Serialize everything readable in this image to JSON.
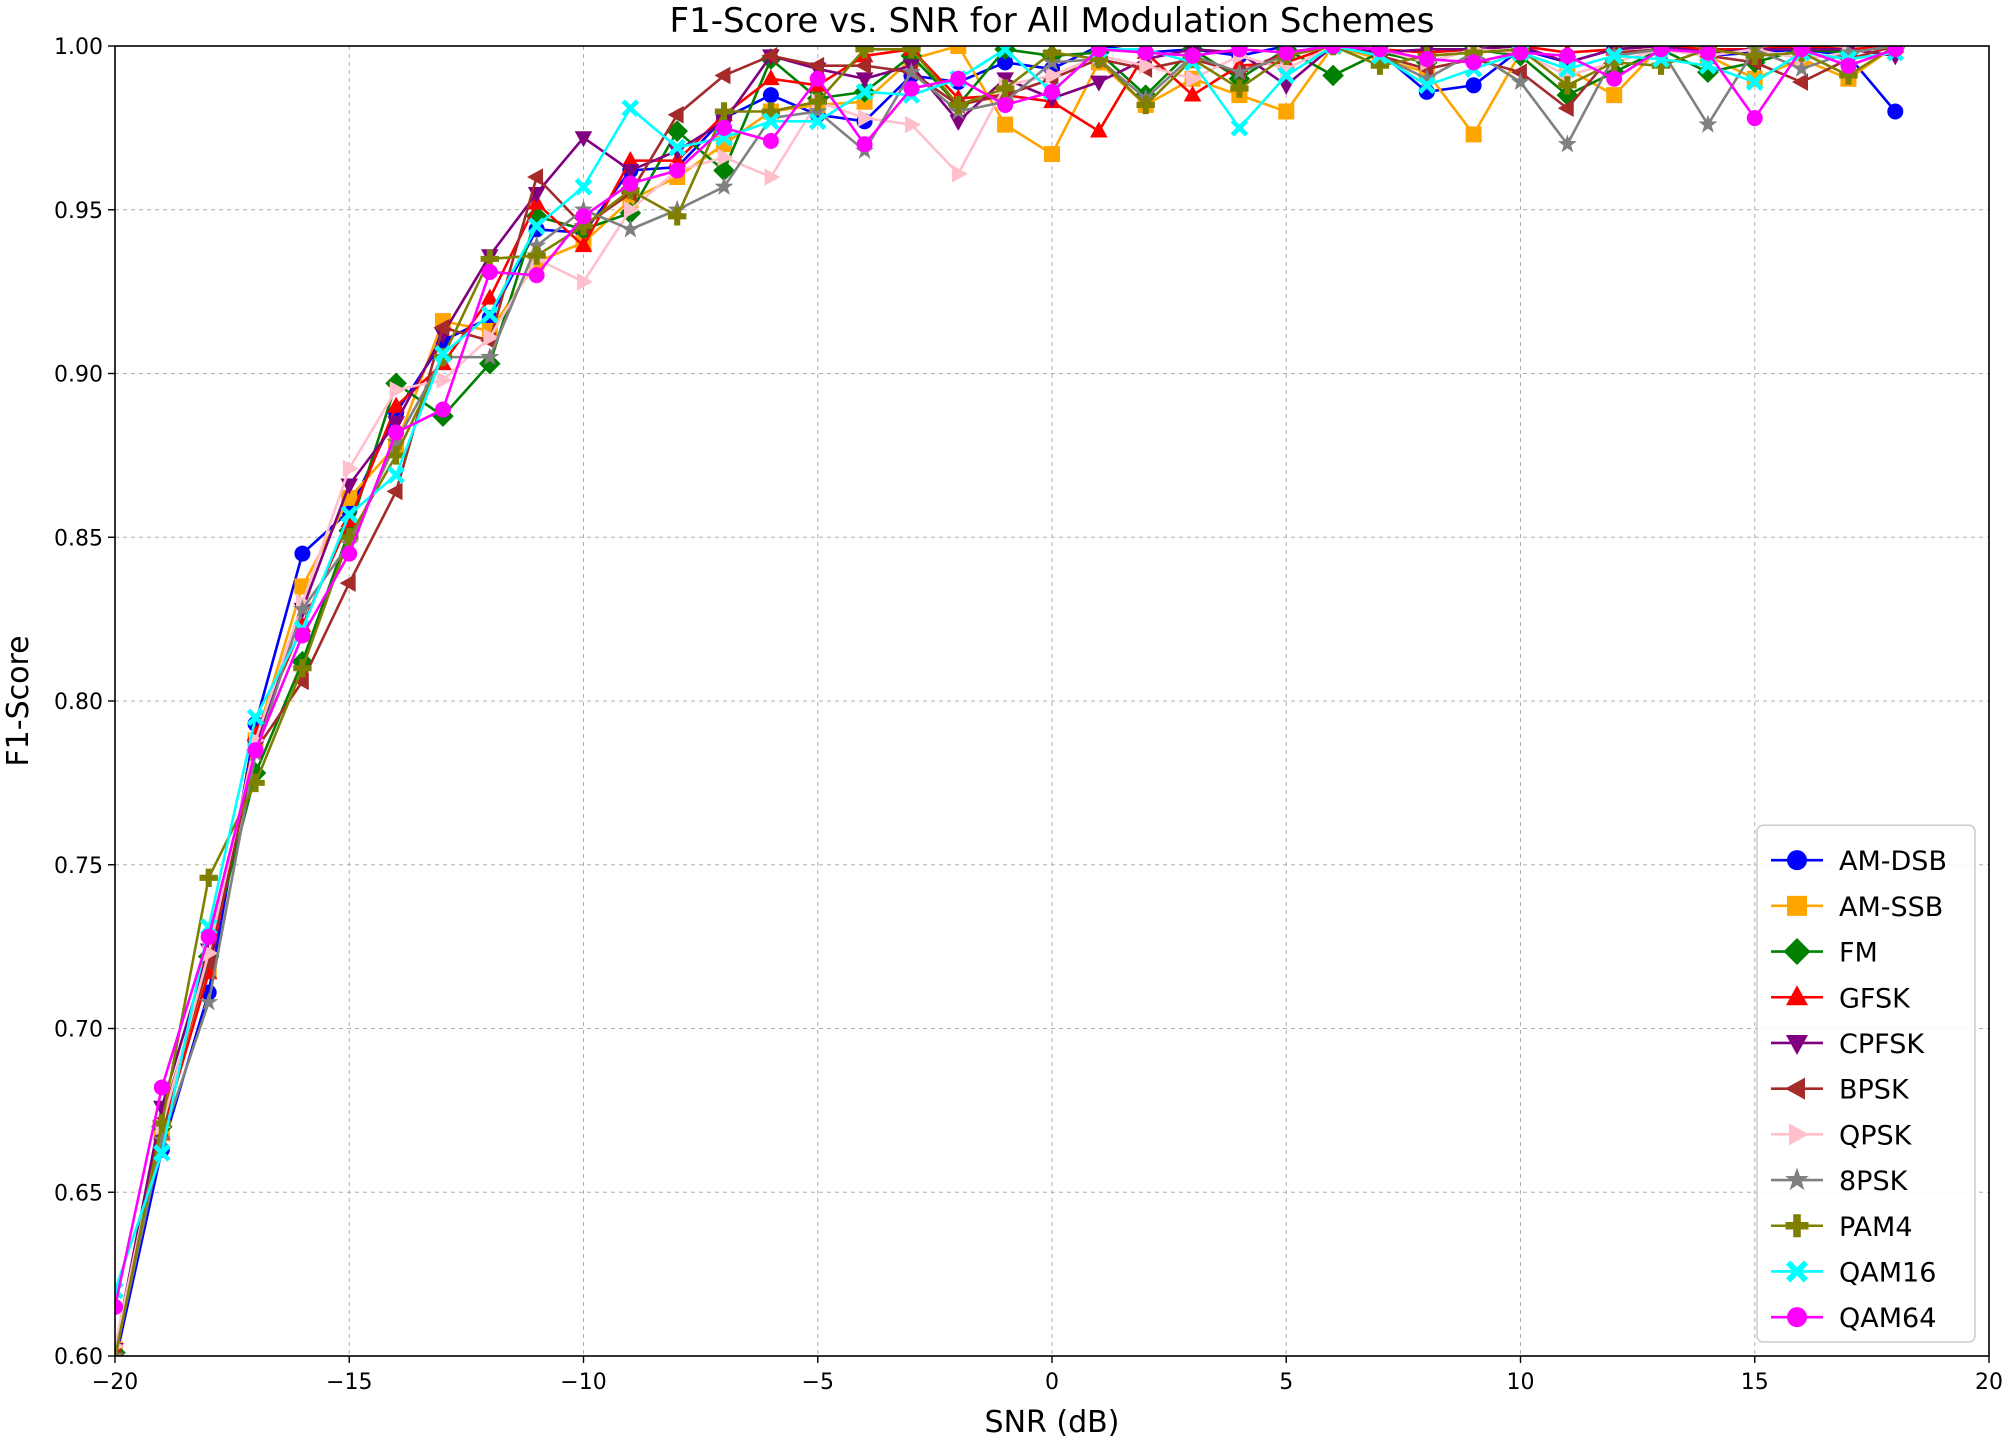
{
  "chart_data": {
    "type": "line",
    "title": "F1-Score vs. SNR for All Modulation Schemes",
    "xlabel": "SNR (dB)",
    "ylabel": "F1-Score",
    "xlim": [
      -20,
      20
    ],
    "ylim": [
      0.6,
      1.0
    ],
    "xticks": [
      -20,
      -15,
      -10,
      -5,
      0,
      5,
      10,
      15,
      20
    ],
    "xtick_labels": [
      "−20",
      "−15",
      "−10",
      "−5",
      "0",
      "5",
      "10",
      "15",
      "20"
    ],
    "yticks": [
      0.6,
      0.65,
      0.7,
      0.75,
      0.8,
      0.85,
      0.9,
      0.95,
      1.0
    ],
    "ytick_labels": [
      "0.60",
      "0.65",
      "0.70",
      "0.75",
      "0.80",
      "0.85",
      "0.90",
      "0.95",
      "1.00"
    ],
    "grid": true,
    "legend_position": "lower-right",
    "x": [
      -20,
      -19,
      -18,
      -17,
      -16,
      -15,
      -14,
      -13,
      -12,
      -11,
      -10,
      -9,
      -8,
      -7,
      -6,
      -5,
      -4,
      -3,
      -2,
      -1,
      0,
      1,
      2,
      3,
      4,
      5,
      6,
      7,
      8,
      9,
      10,
      11,
      12,
      13,
      14,
      15,
      16,
      17,
      18
    ],
    "series": [
      {
        "name": "AM-DSB",
        "color": "#0000ff",
        "marker": "circle",
        "values": [
          0.598,
          0.663,
          0.711,
          0.793,
          0.845,
          0.858,
          0.888,
          0.91,
          0.917,
          0.944,
          0.943,
          0.962,
          0.963,
          0.978,
          0.985,
          0.979,
          0.977,
          0.991,
          0.989,
          0.995,
          0.993,
          1.0,
          0.998,
          0.999,
          0.997,
          1.0,
          1.0,
          0.998,
          0.986,
          0.988,
          0.999,
          0.995,
          0.999,
          1.0,
          0.997,
          0.998,
          0.999,
          0.997,
          0.98
        ]
      },
      {
        "name": "AM-SSB",
        "color": "#ffa500",
        "marker": "square",
        "values": [
          0.602,
          0.668,
          0.718,
          0.788,
          0.835,
          0.862,
          0.878,
          0.916,
          0.913,
          0.934,
          0.94,
          0.953,
          0.96,
          0.97,
          0.98,
          0.982,
          0.983,
          0.996,
          1.0,
          0.976,
          0.967,
          0.995,
          0.982,
          0.99,
          0.985,
          0.98,
          1.0,
          0.996,
          0.992,
          0.973,
          0.998,
          0.993,
          0.985,
          1.0,
          0.997,
          0.99,
          0.996,
          0.99,
          1.0
        ]
      },
      {
        "name": "FM",
        "color": "#008000",
        "marker": "diamond",
        "values": [
          0.601,
          0.67,
          0.722,
          0.778,
          0.812,
          0.852,
          0.897,
          0.887,
          0.903,
          0.948,
          0.944,
          0.949,
          0.974,
          0.962,
          0.996,
          0.984,
          0.986,
          0.997,
          0.982,
          0.999,
          0.997,
          0.998,
          0.985,
          0.999,
          0.99,
          0.999,
          0.991,
          0.998,
          0.995,
          0.999,
          0.997,
          0.985,
          0.992,
          0.999,
          0.992,
          0.995,
          0.999,
          0.998,
          1.0
        ]
      },
      {
        "name": "GFSK",
        "color": "#ff0000",
        "marker": "triangle-up",
        "values": [
          0.6,
          0.668,
          0.717,
          0.79,
          0.823,
          0.855,
          0.89,
          0.903,
          0.923,
          0.952,
          0.939,
          0.965,
          0.965,
          0.979,
          0.99,
          0.988,
          0.997,
          0.999,
          0.984,
          0.985,
          0.983,
          0.974,
          0.998,
          0.985,
          0.994,
          0.995,
          1.0,
          0.999,
          0.998,
          0.999,
          1.0,
          0.998,
          0.999,
          1.0,
          0.999,
          0.999,
          1.0,
          0.999,
          1.0
        ]
      },
      {
        "name": "CPFSK",
        "color": "#800080",
        "marker": "triangle-down",
        "values": [
          0.602,
          0.676,
          0.724,
          0.786,
          0.828,
          0.866,
          0.885,
          0.912,
          0.936,
          0.955,
          0.972,
          0.962,
          0.968,
          0.977,
          0.997,
          0.993,
          0.99,
          0.994,
          0.977,
          0.99,
          0.984,
          0.989,
          0.996,
          0.999,
          0.998,
          0.988,
          1.0,
          0.998,
          0.999,
          0.999,
          1.0,
          0.995,
          0.999,
          1.0,
          0.998,
          0.999,
          0.999,
          0.999,
          0.997
        ]
      },
      {
        "name": "BPSK",
        "color": "#a52a2a",
        "marker": "triangle-left",
        "values": [
          0.601,
          0.672,
          0.72,
          0.785,
          0.806,
          0.836,
          0.864,
          0.914,
          0.91,
          0.96,
          0.945,
          0.955,
          0.979,
          0.991,
          0.997,
          0.994,
          0.994,
          0.992,
          0.982,
          0.985,
          0.99,
          0.996,
          0.993,
          0.996,
          0.992,
          0.998,
          1.0,
          0.997,
          0.993,
          0.996,
          0.992,
          0.981,
          0.998,
          0.999,
          0.997,
          0.995,
          0.989,
          0.996,
          1.0
        ]
      },
      {
        "name": "QPSK",
        "color": "#ffc0cb",
        "marker": "triangle-right",
        "values": [
          0.603,
          0.67,
          0.723,
          0.788,
          0.83,
          0.871,
          0.895,
          0.898,
          0.911,
          0.935,
          0.928,
          0.95,
          0.962,
          0.966,
          0.96,
          0.983,
          0.978,
          0.976,
          0.961,
          0.988,
          0.991,
          0.997,
          0.994,
          0.99,
          0.997,
          0.993,
          1.0,
          0.999,
          0.995,
          0.999,
          0.998,
          0.991,
          0.995,
          0.999,
          0.997,
          0.999,
          0.996,
          0.998,
          1.0
        ]
      },
      {
        "name": "8PSK",
        "color": "#808080",
        "marker": "star",
        "values": [
          0.6,
          0.666,
          0.708,
          0.784,
          0.828,
          0.848,
          0.879,
          0.905,
          0.905,
          0.939,
          0.95,
          0.944,
          0.95,
          0.957,
          0.978,
          0.98,
          0.968,
          0.992,
          0.98,
          0.983,
          0.995,
          0.996,
          0.984,
          0.997,
          0.992,
          0.997,
          1.0,
          0.997,
          0.99,
          0.998,
          0.989,
          0.97,
          0.997,
          0.999,
          0.976,
          0.999,
          0.993,
          0.998,
          1.0
        ]
      },
      {
        "name": "PAM4",
        "color": "#808000",
        "marker": "plus",
        "values": [
          0.599,
          0.671,
          0.746,
          0.775,
          0.81,
          0.85,
          0.875,
          0.905,
          0.935,
          0.936,
          0.945,
          0.956,
          0.948,
          0.98,
          0.98,
          0.983,
          0.999,
          0.999,
          0.982,
          0.987,
          0.998,
          0.996,
          0.982,
          0.996,
          0.987,
          0.997,
          1.0,
          0.994,
          0.997,
          0.998,
          0.999,
          0.988,
          0.995,
          0.994,
          0.999,
          0.997,
          0.998,
          0.991,
          1.0
        ]
      },
      {
        "name": "QAM16",
        "color": "#00ffff",
        "marker": "x",
        "values": [
          0.62,
          0.662,
          0.731,
          0.795,
          0.822,
          0.857,
          0.869,
          0.906,
          0.918,
          0.945,
          0.957,
          0.981,
          0.969,
          0.972,
          0.977,
          0.977,
          0.986,
          0.985,
          0.99,
          0.999,
          0.986,
          0.999,
          0.999,
          0.995,
          0.975,
          0.991,
          1.0,
          0.997,
          0.988,
          0.993,
          0.998,
          0.993,
          0.997,
          0.996,
          0.994,
          0.989,
          0.998,
          0.996,
          0.998
        ]
      },
      {
        "name": "QAM64",
        "color": "#ff00ff",
        "marker": "circle",
        "values": [
          0.615,
          0.682,
          0.728,
          0.785,
          0.82,
          0.845,
          0.882,
          0.889,
          0.931,
          0.93,
          0.948,
          0.958,
          0.962,
          0.975,
          0.971,
          0.99,
          0.97,
          0.987,
          0.99,
          0.982,
          0.986,
          0.999,
          0.998,
          0.997,
          0.999,
          0.998,
          1.0,
          0.999,
          0.996,
          0.995,
          0.998,
          0.997,
          0.99,
          0.999,
          0.998,
          0.978,
          0.999,
          0.994,
          0.999
        ]
      }
    ]
  }
}
